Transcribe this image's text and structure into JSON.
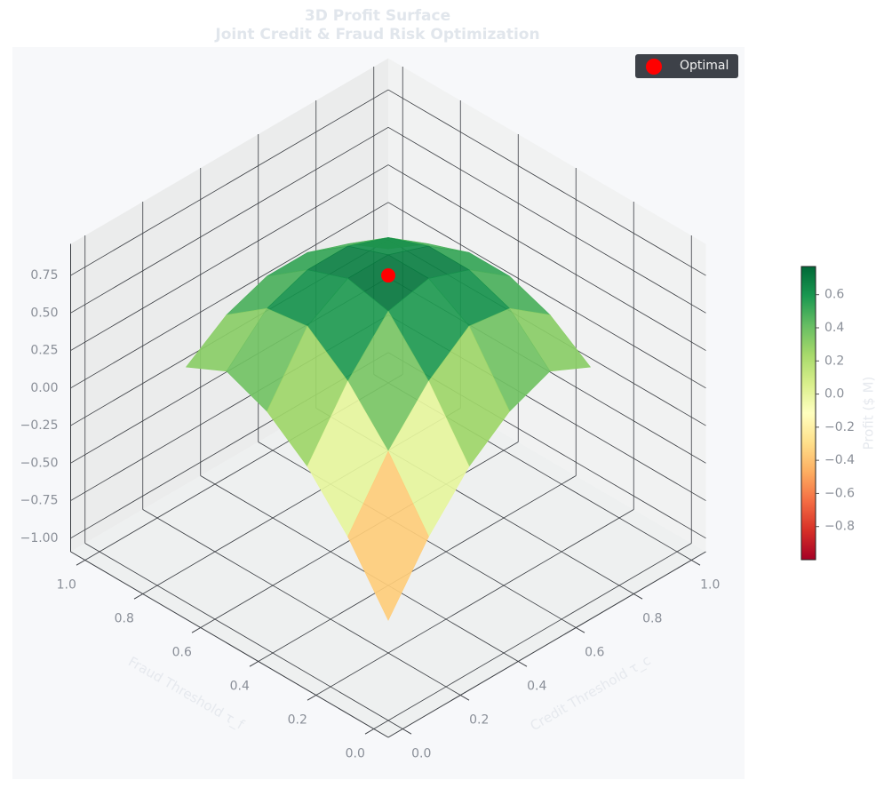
{
  "chart_data": {
    "type": "surface",
    "title": "3D Profit Surface",
    "subtitle": "Joint Credit & Fraud Risk Optimization",
    "xlabel": "Credit Threshold τ_c",
    "ylabel": "Fraud Threshold τ_f",
    "colorbar_label": "Profit ($ M)",
    "colormap": "RdYlGn",
    "x": [
      0.15,
      0.29,
      0.43,
      0.57,
      0.71,
      0.85
    ],
    "y": [
      0.15,
      0.29,
      0.43,
      0.57,
      0.71,
      0.85
    ],
    "z": [
      [
        -0.76,
        -0.36,
        -0.05,
        0.16,
        0.27,
        0.14
      ],
      [
        -0.36,
        0.05,
        0.36,
        0.57,
        0.53,
        0.33
      ],
      [
        -0.05,
        0.36,
        0.67,
        0.73,
        0.63,
        0.43
      ],
      [
        0.16,
        0.57,
        0.73,
        0.73,
        0.63,
        0.43
      ],
      [
        0.27,
        0.53,
        0.63,
        0.63,
        0.53,
        0.33
      ],
      [
        0.14,
        0.33,
        0.43,
        0.43,
        0.33,
        0.14
      ]
    ],
    "series": [
      {
        "name": "Optimal",
        "color": "#ff0000",
        "x": 0.5,
        "y": 0.5,
        "z": 0.75
      }
    ],
    "legend": "upper right",
    "xlim": [
      -0.05,
      1.05
    ],
    "ylim": [
      -0.05,
      1.05
    ],
    "zlim": [
      -1.09,
      0.96
    ],
    "clim": [
      -1.0,
      0.77
    ],
    "xticks": [
      {
        "value": 0,
        "label": "0.0"
      },
      {
        "value": 0.2,
        "label": "0.2"
      },
      {
        "value": 0.4,
        "label": "0.4"
      },
      {
        "value": 0.6,
        "label": "0.6"
      },
      {
        "value": 0.8,
        "label": "0.8"
      },
      {
        "value": 1,
        "label": "1.0"
      }
    ],
    "yticks": [
      {
        "value": 0,
        "label": "0.0"
      },
      {
        "value": 0.2,
        "label": "0.2"
      },
      {
        "value": 0.4,
        "label": "0.4"
      },
      {
        "value": 0.6,
        "label": "0.6"
      },
      {
        "value": 0.8,
        "label": "0.8"
      },
      {
        "value": 1,
        "label": "1.0"
      }
    ],
    "zticks": [
      {
        "value": -1,
        "label": "−1.00"
      },
      {
        "value": -0.75,
        "label": "−0.75"
      },
      {
        "value": -0.5,
        "label": "−0.50"
      },
      {
        "value": -0.25,
        "label": "−0.25"
      },
      {
        "value": 0,
        "label": "0.00"
      },
      {
        "value": 0.25,
        "label": "0.25"
      },
      {
        "value": 0.5,
        "label": "0.50"
      },
      {
        "value": 0.75,
        "label": "0.75"
      }
    ],
    "cticks": [
      {
        "value": -0.8,
        "label": "−0.8"
      },
      {
        "value": -0.6,
        "label": "−0.6"
      },
      {
        "value": -0.4,
        "label": "−0.4"
      },
      {
        "value": -0.2,
        "label": "−0.2"
      },
      {
        "value": 0,
        "label": "0.0"
      },
      0.2,
      0.4,
      0.6
    ],
    "grid": true
  }
}
